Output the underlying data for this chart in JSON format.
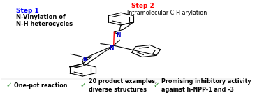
{
  "background_color": "#ffffff",
  "step1_label": "Step 1",
  "step1_text": "N-Vinylation of\nN-H heterocycles",
  "step1_color": "#0000ff",
  "step2_label": "Step 2",
  "step2_text": "Intramolecular C-H arylation",
  "step2_color": "#ff0000",
  "step2_text_color": "#000000",
  "bullet_color": "#228B22",
  "figsize": [
    3.78,
    1.46
  ],
  "dpi": 100
}
